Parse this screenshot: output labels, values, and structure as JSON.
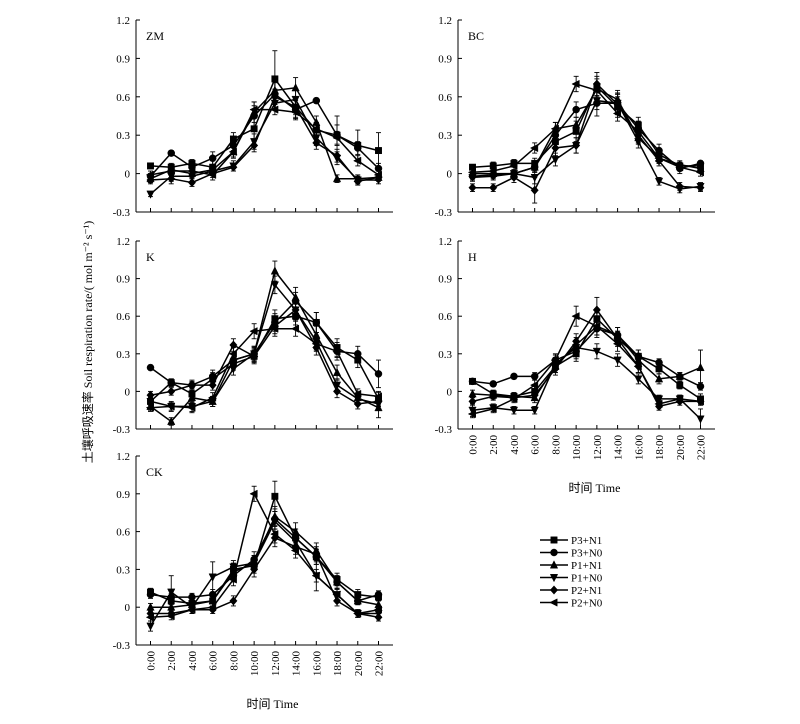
{
  "figure": {
    "ylabel": "土壤呼吸速率 Soil respiration rate/( mol m⁻² s⁻¹)",
    "xlabel": "时间 Time"
  },
  "legend": {
    "entries": [
      {
        "label": "P3+N1",
        "marker": "square"
      },
      {
        "label": "P3+N0",
        "marker": "circle"
      },
      {
        "label": "P1+N1",
        "marker": "triangle-up"
      },
      {
        "label": "P1+N0",
        "marker": "triangle-down"
      },
      {
        "label": "P2+N1",
        "marker": "diamond"
      },
      {
        "label": "P2+N0",
        "marker": "triangle-left"
      }
    ]
  },
  "chart_data": [
    {
      "type": "line",
      "title": "ZM",
      "xlabel": "",
      "ylabel": "",
      "categories": [
        "0:00",
        "2:00",
        "4:00",
        "6:00",
        "8:00",
        "10:00",
        "12:00",
        "14:00",
        "16:00",
        "18:00",
        "20:00",
        "22:00"
      ],
      "yticks": [
        "-0.3",
        "0",
        "0.3",
        "0.6",
        "0.9",
        "1.2"
      ],
      "ylim": [
        -0.3,
        1.2
      ],
      "x_tick_labels_shown": false,
      "series": [
        {
          "name": "P3+N1",
          "values": [
            0.06,
            0.05,
            0.08,
            0.05,
            0.27,
            0.35,
            0.74,
            0.52,
            0.34,
            0.3,
            0.22,
            0.18
          ],
          "err": [
            0.02,
            0.03,
            0.03,
            0.05,
            0.05,
            0.1,
            0.22,
            0.08,
            0.06,
            0.15,
            0.12,
            0.14
          ]
        },
        {
          "name": "P3+N0",
          "values": [
            -0.02,
            0.16,
            0.05,
            0.12,
            0.22,
            0.45,
            0.62,
            0.5,
            0.57,
            0.3,
            0.2,
            0.04
          ],
          "err": [
            0.02,
            0.02,
            0.03,
            0.05,
            0.04,
            0.08,
            0.1,
            0.07,
            0.02,
            0.08,
            0.05,
            0.04
          ]
        },
        {
          "name": "P1+N1",
          "values": [
            -0.04,
            0.03,
            0.0,
            0.03,
            0.17,
            0.48,
            0.65,
            0.67,
            0.4,
            -0.04,
            -0.04,
            -0.03
          ],
          "err": [
            0.03,
            0.04,
            0.03,
            0.04,
            0.05,
            0.08,
            0.06,
            0.08,
            0.05,
            0.03,
            0.03,
            0.02
          ]
        },
        {
          "name": "P1+N0",
          "values": [
            -0.16,
            -0.02,
            -0.02,
            0.02,
            0.06,
            0.25,
            0.55,
            0.58,
            0.28,
            0.12,
            -0.05,
            -0.05
          ],
          "err": [
            0.02,
            0.04,
            0.02,
            0.03,
            0.04,
            0.06,
            0.05,
            0.07,
            0.06,
            0.05,
            0.03,
            0.03
          ]
        },
        {
          "name": "P2+N1",
          "values": [
            -0.05,
            -0.04,
            -0.07,
            0.0,
            0.05,
            0.22,
            0.6,
            0.52,
            0.24,
            0.14,
            -0.06,
            -0.03
          ],
          "err": [
            0.03,
            0.04,
            0.03,
            0.03,
            0.03,
            0.05,
            0.06,
            0.06,
            0.05,
            0.05,
            0.03,
            0.03
          ]
        },
        {
          "name": "P2+N0",
          "values": [
            -0.01,
            0.02,
            0.02,
            -0.01,
            0.17,
            0.5,
            0.5,
            0.48,
            0.35,
            0.28,
            0.1,
            -0.01
          ],
          "err": [
            0.03,
            0.03,
            0.04,
            0.04,
            0.04,
            0.06,
            0.04,
            0.06,
            0.05,
            0.05,
            0.04,
            0.03
          ]
        }
      ]
    },
    {
      "type": "line",
      "title": "BC",
      "xlabel": "",
      "ylabel": "",
      "categories": [
        "0:00",
        "2:00",
        "4:00",
        "6:00",
        "8:00",
        "10:00",
        "12:00",
        "14:00",
        "16:00",
        "18:00",
        "20:00",
        "22:00"
      ],
      "yticks": [
        "-0.3",
        "0",
        "0.3",
        "0.6",
        "0.9",
        "1.2"
      ],
      "ylim": [
        -0.3,
        1.2
      ],
      "x_tick_labels_shown": false,
      "series": [
        {
          "name": "P3+N1",
          "values": [
            0.05,
            0.06,
            0.08,
            0.08,
            0.25,
            0.33,
            0.68,
            0.52,
            0.38,
            0.15,
            0.06,
            0.06
          ],
          "err": [
            0.02,
            0.03,
            0.03,
            0.04,
            0.05,
            0.08,
            0.08,
            0.08,
            0.06,
            0.04,
            0.03,
            0.03
          ]
        },
        {
          "name": "P3+N0",
          "values": [
            -0.02,
            -0.01,
            0.0,
            0.05,
            0.3,
            0.5,
            0.55,
            0.55,
            0.35,
            0.18,
            0.04,
            0.08
          ],
          "err": [
            0.03,
            0.03,
            0.03,
            0.04,
            0.05,
            0.06,
            0.1,
            0.08,
            0.06,
            0.05,
            0.04,
            0.02
          ]
        },
        {
          "name": "P1+N1",
          "values": [
            0.0,
            0.0,
            0.0,
            0.05,
            0.35,
            0.38,
            0.66,
            0.58,
            0.28,
            0.12,
            0.07,
            0.04
          ],
          "err": [
            0.03,
            0.03,
            0.03,
            0.04,
            0.05,
            0.06,
            0.08,
            0.07,
            0.05,
            0.04,
            0.03,
            0.03
          ]
        },
        {
          "name": "P1+N0",
          "values": [
            -0.03,
            -0.02,
            0.0,
            -0.03,
            0.11,
            0.22,
            0.57,
            0.55,
            0.25,
            -0.06,
            -0.12,
            -0.1
          ],
          "err": [
            0.03,
            0.03,
            0.03,
            0.05,
            0.05,
            0.06,
            0.07,
            0.07,
            0.05,
            0.03,
            0.03,
            0.03
          ]
        },
        {
          "name": "P2+N1",
          "values": [
            -0.11,
            -0.11,
            -0.03,
            -0.13,
            0.2,
            0.22,
            0.7,
            0.54,
            0.3,
            0.1,
            -0.1,
            -0.11
          ],
          "err": [
            0.03,
            0.03,
            0.04,
            0.1,
            0.06,
            0.06,
            0.09,
            0.08,
            0.06,
            0.04,
            0.03,
            0.03
          ]
        },
        {
          "name": "P2+N0",
          "values": [
            0.01,
            0.02,
            0.06,
            0.2,
            0.35,
            0.7,
            0.65,
            0.47,
            0.33,
            0.12,
            0.05,
            0.01
          ],
          "err": [
            0.03,
            0.03,
            0.04,
            0.04,
            0.05,
            0.06,
            0.06,
            0.06,
            0.05,
            0.04,
            0.03,
            0.03
          ]
        }
      ]
    },
    {
      "type": "line",
      "title": "K",
      "xlabel": "",
      "ylabel": "",
      "categories": [
        "0:00",
        "2:00",
        "4:00",
        "6:00",
        "8:00",
        "10:00",
        "12:00",
        "14:00",
        "16:00",
        "18:00",
        "20:00",
        "22:00"
      ],
      "yticks": [
        "-0.3",
        "0",
        "0.3",
        "0.6",
        "0.9",
        "1.2"
      ],
      "ylim": [
        -0.3,
        1.2
      ],
      "x_tick_labels_shown": false,
      "series": [
        {
          "name": "P3+N1",
          "values": [
            -0.08,
            0.07,
            -0.02,
            0.1,
            0.22,
            0.28,
            0.58,
            0.6,
            0.55,
            0.35,
            0.25,
            -0.06
          ],
          "err": [
            0.03,
            0.03,
            0.04,
            0.05,
            0.05,
            0.06,
            0.07,
            0.07,
            0.08,
            0.07,
            0.06,
            0.05
          ]
        },
        {
          "name": "P3+N0",
          "values": [
            0.19,
            0.07,
            0.05,
            0.12,
            0.25,
            0.3,
            0.55,
            0.72,
            0.55,
            0.32,
            0.3,
            0.14
          ],
          "err": [
            0.02,
            0.03,
            0.04,
            0.05,
            0.05,
            0.06,
            0.07,
            0.07,
            0.08,
            0.07,
            0.06,
            0.11
          ]
        },
        {
          "name": "P1+N1",
          "values": [
            -0.12,
            -0.24,
            -0.05,
            -0.08,
            0.25,
            0.3,
            0.96,
            0.75,
            0.45,
            0.15,
            -0.05,
            -0.13
          ],
          "err": [
            0.03,
            0.03,
            0.04,
            0.04,
            0.05,
            0.06,
            0.08,
            0.08,
            0.07,
            0.06,
            0.04,
            0.08
          ]
        },
        {
          "name": "P1+N0",
          "values": [
            -0.08,
            -0.12,
            -0.12,
            -0.08,
            0.18,
            0.3,
            0.85,
            0.65,
            0.4,
            0.05,
            -0.06,
            -0.1
          ],
          "err": [
            0.03,
            0.03,
            0.04,
            0.04,
            0.05,
            0.05,
            0.07,
            0.08,
            0.07,
            0.05,
            0.04,
            0.05
          ]
        },
        {
          "name": "P2+N1",
          "values": [
            -0.03,
            0.0,
            0.05,
            0.05,
            0.37,
            0.28,
            0.52,
            0.65,
            0.35,
            0.0,
            -0.1,
            -0.08
          ],
          "err": [
            0.03,
            0.03,
            0.03,
            0.04,
            0.05,
            0.05,
            0.06,
            0.07,
            0.06,
            0.05,
            0.04,
            0.04
          ]
        },
        {
          "name": "P2+N0",
          "values": [
            -0.13,
            -0.12,
            -0.13,
            -0.05,
            0.3,
            0.48,
            0.5,
            0.5,
            0.38,
            0.32,
            -0.02,
            -0.04
          ],
          "err": [
            0.03,
            0.04,
            0.04,
            0.04,
            0.05,
            0.06,
            0.06,
            0.06,
            0.06,
            0.05,
            0.04,
            0.04
          ]
        }
      ]
    },
    {
      "type": "line",
      "title": "H",
      "xlabel": "时间 Time",
      "ylabel": "",
      "categories": [
        "0:00",
        "2:00",
        "4:00",
        "6:00",
        "8:00",
        "10:00",
        "12:00",
        "14:00",
        "16:00",
        "18:00",
        "20:00",
        "22:00"
      ],
      "yticks": [
        "-0.3",
        "0",
        "0.3",
        "0.6",
        "0.9",
        "1.2"
      ],
      "ylim": [
        -0.3,
        1.2
      ],
      "x_tick_labels_shown": true,
      "series": [
        {
          "name": "P3+N1",
          "values": [
            0.08,
            -0.02,
            -0.04,
            0.0,
            0.2,
            0.3,
            0.58,
            0.42,
            0.28,
            0.18,
            0.05,
            -0.06
          ],
          "err": [
            0.02,
            0.03,
            0.03,
            0.04,
            0.05,
            0.06,
            0.08,
            0.06,
            0.05,
            0.04,
            0.03,
            0.04
          ]
        },
        {
          "name": "P3+N0",
          "values": [
            0.08,
            0.06,
            0.12,
            0.12,
            0.25,
            0.32,
            0.5,
            0.45,
            0.28,
            0.23,
            0.12,
            0.04
          ],
          "err": [
            0.02,
            0.02,
            0.02,
            0.03,
            0.04,
            0.06,
            0.07,
            0.06,
            0.05,
            0.03,
            0.03,
            0.03
          ]
        },
        {
          "name": "P1+N1",
          "values": [
            -0.02,
            -0.03,
            -0.04,
            -0.05,
            0.2,
            0.37,
            0.52,
            0.45,
            0.25,
            0.1,
            0.12,
            0.19
          ],
          "err": [
            0.03,
            0.03,
            0.03,
            0.04,
            0.05,
            0.06,
            0.07,
            0.06,
            0.05,
            0.04,
            0.03,
            0.14
          ]
        },
        {
          "name": "P1+N0",
          "values": [
            -0.15,
            -0.13,
            -0.15,
            -0.15,
            0.22,
            0.35,
            0.32,
            0.25,
            0.1,
            -0.06,
            -0.06,
            -0.22
          ],
          "err": [
            0.05,
            0.03,
            0.03,
            0.03,
            0.05,
            0.06,
            0.06,
            0.05,
            0.04,
            0.03,
            0.03,
            0.08
          ]
        },
        {
          "name": "P2+N1",
          "values": [
            -0.08,
            -0.04,
            -0.05,
            -0.03,
            0.18,
            0.4,
            0.65,
            0.42,
            0.2,
            -0.12,
            -0.08,
            -0.08
          ],
          "err": [
            0.03,
            0.03,
            0.03,
            0.04,
            0.05,
            0.06,
            0.1,
            0.06,
            0.05,
            0.03,
            0.03,
            0.03
          ]
        },
        {
          "name": "P2+N0",
          "values": [
            -0.18,
            -0.14,
            -0.06,
            0.05,
            0.25,
            0.6,
            0.52,
            0.38,
            0.2,
            -0.1,
            -0.06,
            -0.08
          ],
          "err": [
            0.03,
            0.03,
            0.03,
            0.04,
            0.05,
            0.08,
            0.07,
            0.06,
            0.05,
            0.03,
            0.03,
            0.03
          ]
        }
      ]
    },
    {
      "type": "line",
      "title": "CK",
      "xlabel": "时间 Time",
      "ylabel": "",
      "categories": [
        "0:00",
        "2:00",
        "4:00",
        "6:00",
        "8:00",
        "10:00",
        "12:00",
        "14:00",
        "16:00",
        "18:00",
        "20:00",
        "22:00"
      ],
      "yticks": [
        "-0.3",
        "0",
        "0.3",
        "0.6",
        "0.9",
        "1.2"
      ],
      "ylim": [
        -0.3,
        1.2
      ],
      "x_tick_labels_shown": true,
      "series": [
        {
          "name": "P3+N1",
          "values": [
            0.12,
            0.05,
            0.03,
            0.05,
            0.3,
            0.33,
            0.88,
            0.55,
            0.4,
            0.22,
            0.1,
            0.08
          ],
          "err": [
            0.03,
            0.03,
            0.03,
            0.04,
            0.05,
            0.06,
            0.12,
            0.07,
            0.06,
            0.05,
            0.04,
            0.03
          ]
        },
        {
          "name": "P3+N0",
          "values": [
            0.1,
            0.08,
            0.08,
            0.1,
            0.25,
            0.38,
            0.7,
            0.55,
            0.4,
            0.2,
            0.05,
            0.1
          ],
          "err": [
            0.03,
            0.03,
            0.03,
            0.04,
            0.05,
            0.06,
            0.08,
            0.07,
            0.06,
            0.05,
            0.03,
            0.03
          ]
        },
        {
          "name": "P1+N1",
          "values": [
            0.0,
            0.0,
            0.02,
            0.05,
            0.28,
            0.35,
            0.72,
            0.6,
            0.45,
            0.2,
            0.05,
            0.02
          ],
          "err": [
            0.03,
            0.03,
            0.03,
            0.04,
            0.05,
            0.06,
            0.08,
            0.07,
            0.06,
            0.05,
            0.03,
            0.03
          ]
        },
        {
          "name": "P1+N0",
          "values": [
            -0.15,
            0.12,
            0.0,
            0.24,
            0.32,
            0.35,
            0.68,
            0.52,
            0.25,
            0.1,
            -0.05,
            -0.05
          ],
          "err": [
            0.04,
            0.13,
            0.03,
            0.12,
            0.05,
            0.06,
            0.08,
            0.07,
            0.12,
            0.05,
            0.03,
            0.04
          ]
        },
        {
          "name": "P2+N1",
          "values": [
            -0.05,
            -0.05,
            -0.02,
            -0.02,
            0.05,
            0.3,
            0.55,
            0.48,
            0.42,
            0.05,
            -0.05,
            -0.08
          ],
          "err": [
            0.03,
            0.03,
            0.03,
            0.03,
            0.04,
            0.06,
            0.07,
            0.06,
            0.06,
            0.04,
            0.03,
            0.03
          ]
        },
        {
          "name": "P2+N0",
          "values": [
            -0.08,
            -0.07,
            -0.02,
            0.0,
            0.22,
            0.9,
            0.58,
            0.45,
            0.25,
            0.1,
            -0.05,
            -0.02
          ],
          "err": [
            0.03,
            0.03,
            0.03,
            0.03,
            0.05,
            0.06,
            0.07,
            0.06,
            0.05,
            0.04,
            0.03,
            0.03
          ]
        }
      ]
    }
  ]
}
